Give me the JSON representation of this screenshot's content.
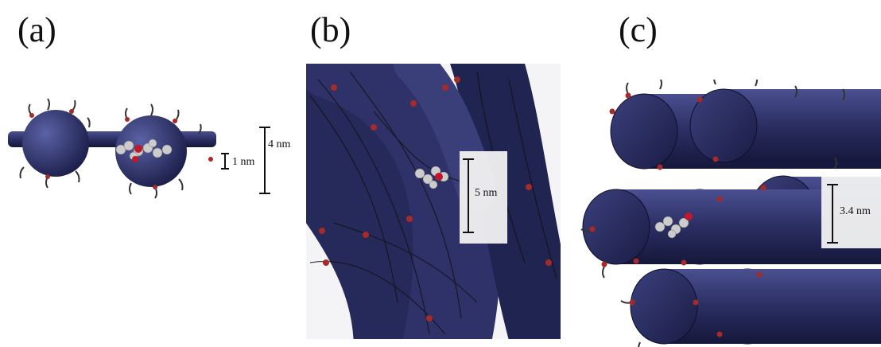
{
  "panels": [
    {
      "label": "(a)",
      "scale_labels": [
        "1 nm",
        "4 nm"
      ]
    },
    {
      "label": "(b)",
      "scale_labels": [
        "5 nm"
      ]
    },
    {
      "label": "(c)",
      "scale_labels": [
        "3.4 nm"
      ]
    }
  ]
}
